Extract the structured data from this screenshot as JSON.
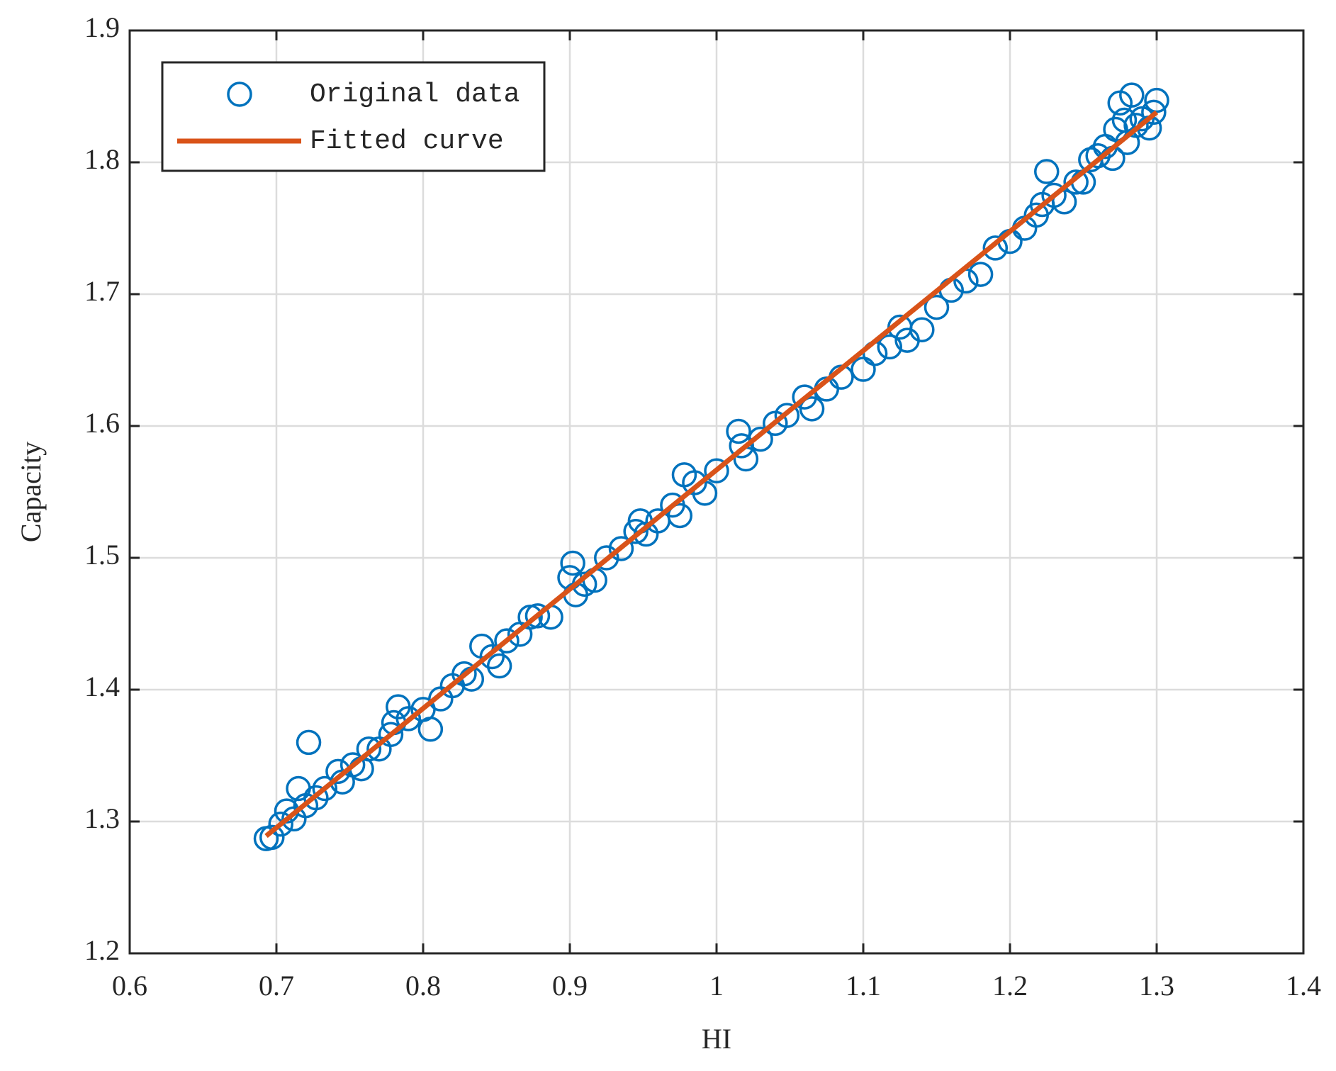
{
  "chart_data": {
    "type": "scatter",
    "xlabel": "HI",
    "ylabel": "Capacity",
    "xlim": [
      0.6,
      1.4
    ],
    "xticks": [
      0.6,
      0.7,
      0.8,
      0.9,
      1,
      1.1,
      1.2,
      1.3,
      1.4
    ],
    "ylim": [
      1.2,
      1.9
    ],
    "yticks": [
      1.2,
      1.3,
      1.4,
      1.5,
      1.6,
      1.7,
      1.8,
      1.9
    ],
    "grid": true,
    "legend": "upper left",
    "series": [
      {
        "name": "Original data",
        "color": "#0072BD",
        "marker": "circle",
        "x": [
          0.693,
          0.697,
          0.703,
          0.707,
          0.712,
          0.715,
          0.72,
          0.722,
          0.727,
          0.733,
          0.742,
          0.745,
          0.752,
          0.758,
          0.763,
          0.77,
          0.778,
          0.78,
          0.783,
          0.79,
          0.8,
          0.805,
          0.812,
          0.82,
          0.828,
          0.833,
          0.84,
          0.847,
          0.852,
          0.857,
          0.866,
          0.873,
          0.878,
          0.887,
          0.9,
          0.902,
          0.904,
          0.91,
          0.917,
          0.925,
          0.935,
          0.945,
          0.948,
          0.952,
          0.96,
          0.97,
          0.975,
          0.978,
          0.985,
          0.992,
          1.0,
          1.015,
          1.017,
          1.02,
          1.03,
          1.04,
          1.048,
          1.06,
          1.065,
          1.075,
          1.085,
          1.1,
          1.108,
          1.118,
          1.125,
          1.13,
          1.14,
          1.15,
          1.16,
          1.17,
          1.18,
          1.19,
          1.2,
          1.21,
          1.218,
          1.222,
          1.225,
          1.23,
          1.237,
          1.245,
          1.25,
          1.255,
          1.26,
          1.265,
          1.27,
          1.272,
          1.275,
          1.278,
          1.28,
          1.283,
          1.286,
          1.29,
          1.295,
          1.298,
          1.3
        ],
        "values": [
          1.287,
          1.288,
          1.298,
          1.308,
          1.302,
          1.325,
          1.312,
          1.36,
          1.318,
          1.325,
          1.338,
          1.33,
          1.343,
          1.34,
          1.355,
          1.355,
          1.366,
          1.375,
          1.387,
          1.378,
          1.385,
          1.37,
          1.393,
          1.403,
          1.412,
          1.408,
          1.433,
          1.425,
          1.418,
          1.437,
          1.442,
          1.455,
          1.456,
          1.455,
          1.485,
          1.496,
          1.472,
          1.48,
          1.483,
          1.5,
          1.507,
          1.52,
          1.528,
          1.518,
          1.528,
          1.54,
          1.532,
          1.563,
          1.557,
          1.549,
          1.566,
          1.596,
          1.585,
          1.575,
          1.59,
          1.602,
          1.608,
          1.622,
          1.613,
          1.628,
          1.637,
          1.643,
          1.655,
          1.66,
          1.675,
          1.665,
          1.673,
          1.69,
          1.703,
          1.71,
          1.715,
          1.735,
          1.74,
          1.75,
          1.76,
          1.768,
          1.793,
          1.775,
          1.77,
          1.785,
          1.785,
          1.802,
          1.805,
          1.812,
          1.803,
          1.825,
          1.845,
          1.832,
          1.815,
          1.851,
          1.828,
          1.833,
          1.826,
          1.838,
          1.847
        ]
      },
      {
        "name": "Fitted curve",
        "color": "#D95319",
        "marker": "line",
        "x": [
          0.693,
          1.3
        ],
        "values": [
          1.289,
          1.838
        ]
      }
    ]
  }
}
